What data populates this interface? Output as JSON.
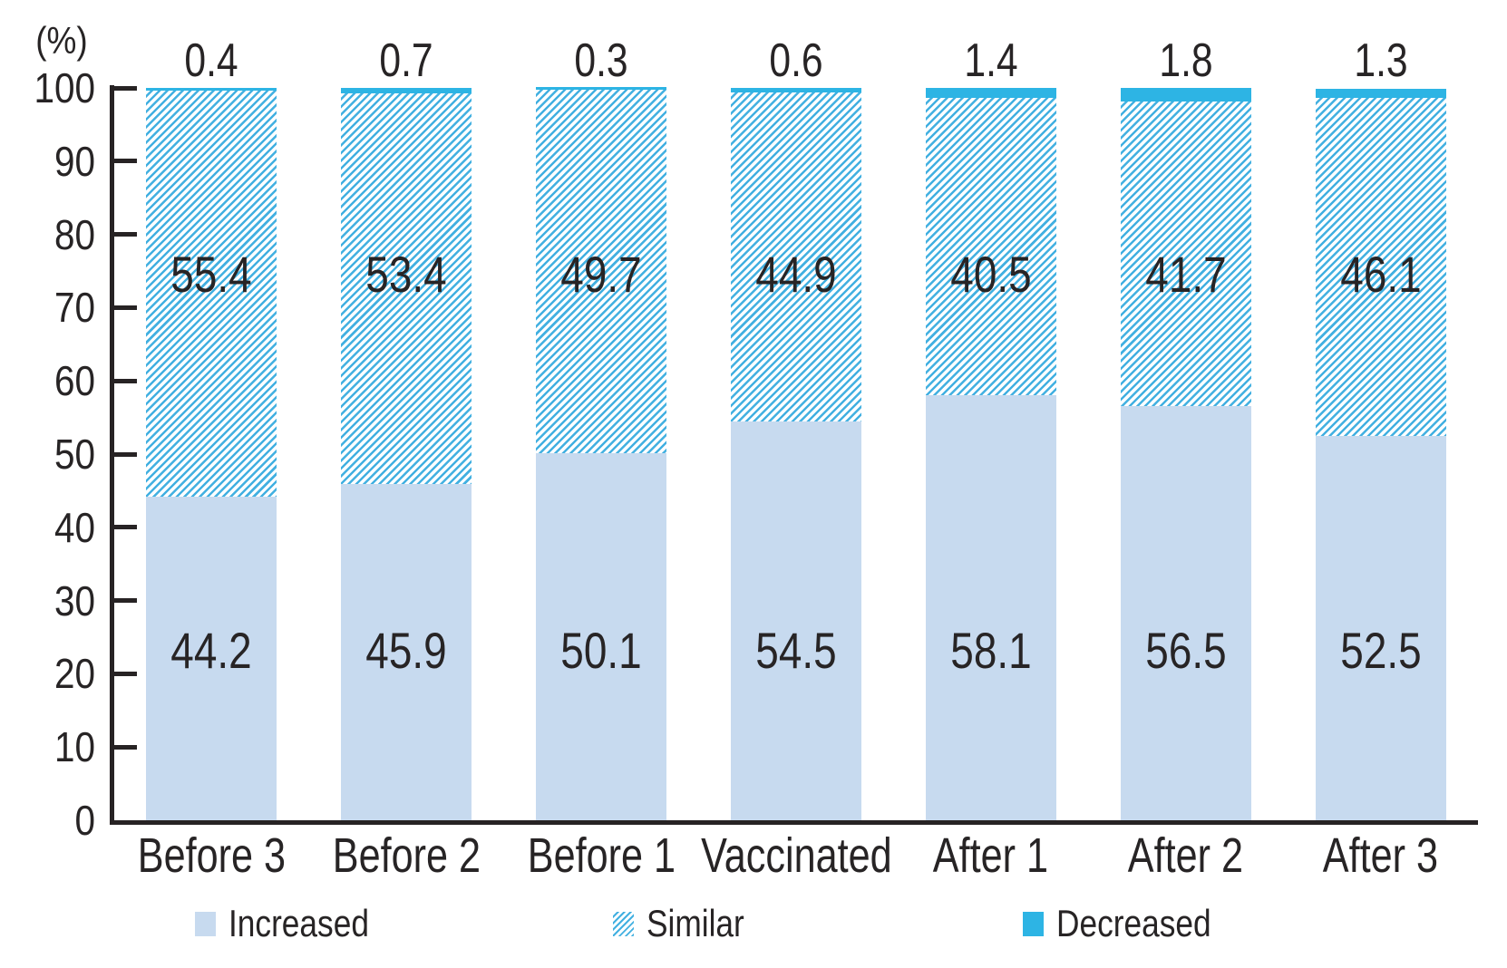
{
  "chart_data": {
    "type": "bar",
    "stacked": true,
    "title": "",
    "ylabel": "(%)",
    "ylim": [
      0,
      100
    ],
    "yticks": [
      0,
      10,
      20,
      30,
      40,
      50,
      60,
      70,
      80,
      90,
      100
    ],
    "grid": false,
    "legend_position": "bottom",
    "categories": [
      "Before 3",
      "Before 2",
      "Before 1",
      "Vaccinated",
      "After 1",
      "After 2",
      "After 3"
    ],
    "series": [
      {
        "name": "Increased",
        "style": "solid-light-blue",
        "values": [
          44.2,
          45.9,
          50.1,
          54.5,
          58.1,
          56.5,
          52.5
        ]
      },
      {
        "name": "Similar",
        "style": "blue-diagonal-hatch",
        "values": [
          55.4,
          53.4,
          49.7,
          44.9,
          40.5,
          41.7,
          46.1
        ]
      },
      {
        "name": "Decreased",
        "style": "solid-cyan",
        "values": [
          0.4,
          0.7,
          0.3,
          0.6,
          1.4,
          1.8,
          1.3
        ]
      }
    ],
    "colors": {
      "increased": "#c7daef",
      "similar_hatch": "#42b0e1",
      "similar_background": "#ffffff",
      "decreased": "#2db4e4",
      "axis": "#272324",
      "text": "#272425"
    }
  }
}
